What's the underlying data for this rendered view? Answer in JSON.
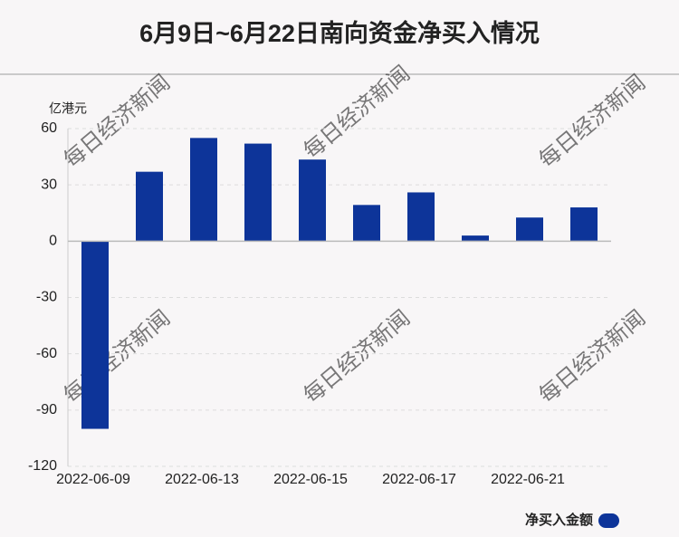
{
  "chart_data": {
    "type": "bar",
    "title": "6月9日~6月22日南向资金净买入情况",
    "y_label": "亿港元",
    "watermark": "每日经济新闻",
    "categories": [
      "2022-06-09",
      null,
      "2022-06-13",
      null,
      "2022-06-15",
      null,
      "2022-06-17",
      null,
      "2022-06-21",
      null
    ],
    "series": [
      {
        "name": "净买入金额",
        "color": "#0d3499",
        "values": [
          -100,
          37,
          55,
          52,
          43.5,
          19.3,
          26,
          3,
          12.6,
          18
        ]
      }
    ],
    "ylim": [
      -120,
      60
    ],
    "yticks": [
      60,
      30,
      0,
      -30,
      -60,
      -90,
      -120
    ],
    "grid": true,
    "legend": "bottom-right"
  }
}
